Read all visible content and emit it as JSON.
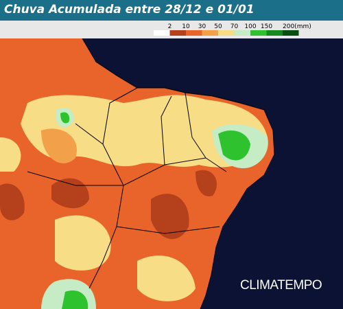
{
  "header": {
    "title": "Chuva Acumulada entre 28/12 e 01/01"
  },
  "legend": {
    "labels": [
      "2",
      "10",
      "30",
      "50",
      "70",
      "100",
      "150",
      "200(mm)"
    ],
    "colors": [
      "#ffffff",
      "#b5401c",
      "#e8642a",
      "#f3a04a",
      "#f7dd85",
      "#c5ecc5",
      "#2fc22f",
      "#13891f",
      "#0a4d13"
    ]
  },
  "brand": "CLIMATEMPO"
}
